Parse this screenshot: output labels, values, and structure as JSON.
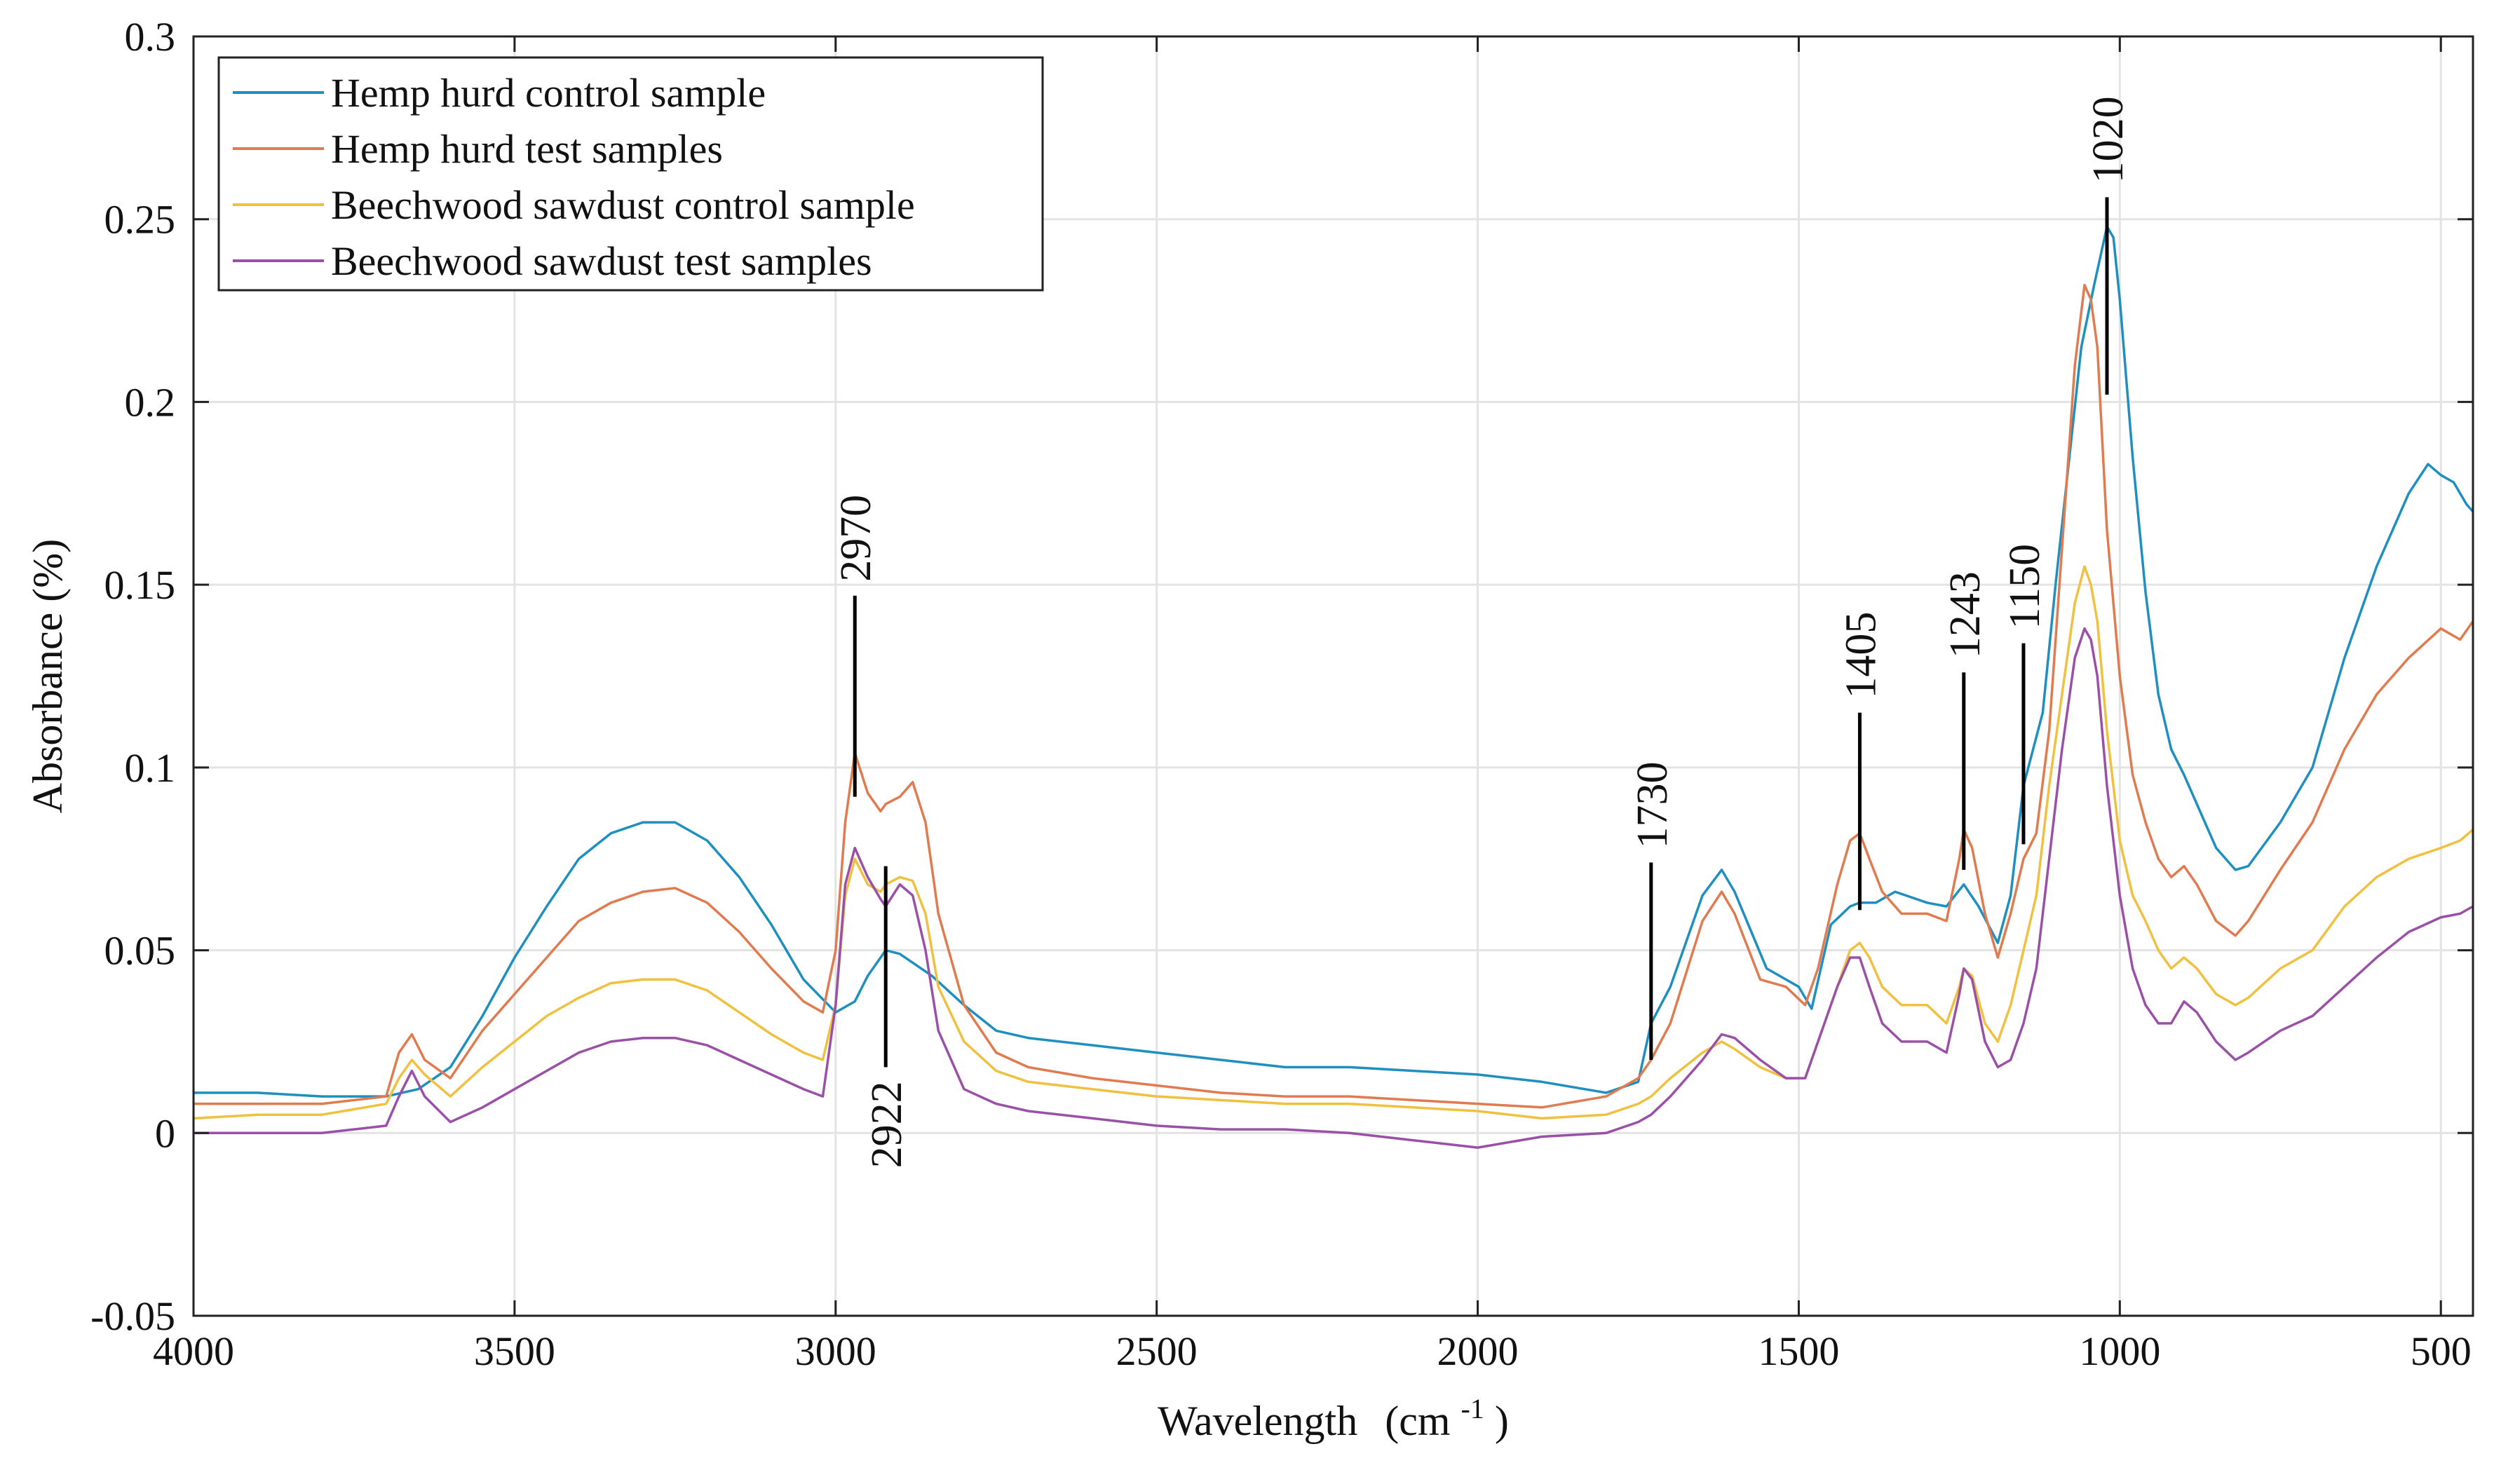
{
  "chart_data": {
    "type": "line",
    "title": "",
    "xlabel": "Wavelength",
    "xlabel_unit": "(cm",
    "xlabel_unit_sup": "-1",
    "xlabel_unit_close": ")",
    "ylabel": "Absorbance (%)",
    "xlim": [
      4000,
      450
    ],
    "ylim": [
      -0.05,
      0.3
    ],
    "x_reversed": true,
    "grid": true,
    "legend_position": "top-left",
    "x_ticks": [
      4000,
      3500,
      3000,
      2500,
      2000,
      1500,
      1000,
      500
    ],
    "x_tick_labels": [
      "4000",
      "3500",
      "3000",
      "2500",
      "2000",
      "1500",
      "1000",
      "500"
    ],
    "y_ticks": [
      -0.05,
      0,
      0.05,
      0.1,
      0.15,
      0.2,
      0.25,
      0.3
    ],
    "y_tick_labels": [
      "-0.05",
      "0",
      "0.05",
      "0.1",
      "0.15",
      "0.2",
      "0.25",
      "0.3"
    ],
    "series": [
      {
        "name": "Hemp hurd control sample",
        "color": "#1f8fc0",
        "x": [
          4000,
          3900,
          3800,
          3700,
          3650,
          3600,
          3550,
          3500,
          3450,
          3400,
          3350,
          3300,
          3250,
          3200,
          3150,
          3100,
          3050,
          3000,
          2970,
          2950,
          2922,
          2900,
          2850,
          2800,
          2750,
          2700,
          2600,
          2500,
          2400,
          2300,
          2200,
          2100,
          2000,
          1900,
          1800,
          1750,
          1730,
          1700,
          1650,
          1620,
          1600,
          1550,
          1500,
          1480,
          1450,
          1420,
          1405,
          1380,
          1350,
          1300,
          1270,
          1243,
          1220,
          1190,
          1170,
          1150,
          1120,
          1100,
          1060,
          1040,
          1030,
          1020,
          1010,
          1000,
          980,
          960,
          940,
          920,
          900,
          880,
          850,
          820,
          800,
          750,
          700,
          650,
          600,
          550,
          520,
          500,
          480,
          460,
          450
        ],
        "y": [
          0.011,
          0.011,
          0.01,
          0.01,
          0.012,
          0.018,
          0.032,
          0.048,
          0.062,
          0.075,
          0.082,
          0.085,
          0.085,
          0.08,
          0.07,
          0.057,
          0.042,
          0.033,
          0.036,
          0.043,
          0.05,
          0.049,
          0.043,
          0.035,
          0.028,
          0.026,
          0.024,
          0.022,
          0.02,
          0.018,
          0.018,
          0.017,
          0.016,
          0.014,
          0.011,
          0.014,
          0.03,
          0.04,
          0.065,
          0.072,
          0.066,
          0.045,
          0.04,
          0.034,
          0.057,
          0.062,
          0.063,
          0.063,
          0.066,
          0.063,
          0.062,
          0.068,
          0.062,
          0.052,
          0.065,
          0.095,
          0.115,
          0.15,
          0.215,
          0.232,
          0.24,
          0.248,
          0.245,
          0.228,
          0.185,
          0.148,
          0.12,
          0.105,
          0.098,
          0.09,
          0.078,
          0.072,
          0.073,
          0.085,
          0.1,
          0.13,
          0.155,
          0.175,
          0.183,
          0.18,
          0.178,
          0.172,
          0.17
        ]
      },
      {
        "name": "Hemp hurd test samples",
        "color": "#e07b50",
        "x": [
          4000,
          3900,
          3800,
          3700,
          3680,
          3660,
          3640,
          3600,
          3550,
          3500,
          3450,
          3400,
          3350,
          3300,
          3250,
          3200,
          3150,
          3100,
          3050,
          3020,
          3000,
          2985,
          2970,
          2950,
          2930,
          2922,
          2900,
          2880,
          2860,
          2840,
          2800,
          2750,
          2700,
          2600,
          2500,
          2400,
          2300,
          2200,
          2100,
          2000,
          1900,
          1800,
          1750,
          1730,
          1700,
          1650,
          1620,
          1600,
          1560,
          1520,
          1490,
          1470,
          1440,
          1420,
          1405,
          1390,
          1370,
          1340,
          1300,
          1270,
          1250,
          1243,
          1230,
          1210,
          1190,
          1170,
          1150,
          1130,
          1110,
          1090,
          1070,
          1055,
          1045,
          1035,
          1020,
          1000,
          980,
          960,
          940,
          920,
          900,
          880,
          850,
          820,
          800,
          750,
          700,
          650,
          600,
          550,
          500,
          470,
          450
        ],
        "y": [
          0.008,
          0.008,
          0.008,
          0.01,
          0.022,
          0.027,
          0.02,
          0.015,
          0.028,
          0.038,
          0.048,
          0.058,
          0.063,
          0.066,
          0.067,
          0.063,
          0.055,
          0.045,
          0.036,
          0.033,
          0.05,
          0.085,
          0.104,
          0.093,
          0.088,
          0.09,
          0.092,
          0.096,
          0.085,
          0.06,
          0.035,
          0.022,
          0.018,
          0.015,
          0.013,
          0.011,
          0.01,
          0.01,
          0.009,
          0.008,
          0.007,
          0.01,
          0.015,
          0.02,
          0.03,
          0.058,
          0.066,
          0.06,
          0.042,
          0.04,
          0.035,
          0.045,
          0.068,
          0.08,
          0.082,
          0.075,
          0.066,
          0.06,
          0.06,
          0.058,
          0.075,
          0.083,
          0.078,
          0.06,
          0.048,
          0.06,
          0.075,
          0.082,
          0.11,
          0.16,
          0.21,
          0.232,
          0.228,
          0.215,
          0.165,
          0.125,
          0.098,
          0.085,
          0.075,
          0.07,
          0.073,
          0.068,
          0.058,
          0.054,
          0.058,
          0.072,
          0.085,
          0.105,
          0.12,
          0.13,
          0.138,
          0.135,
          0.14
        ]
      },
      {
        "name": "Beechwood sawdust control sample",
        "color": "#f0c040",
        "x": [
          4000,
          3900,
          3800,
          3700,
          3680,
          3660,
          3640,
          3600,
          3550,
          3500,
          3450,
          3400,
          3350,
          3300,
          3250,
          3200,
          3150,
          3100,
          3050,
          3020,
          3000,
          2985,
          2970,
          2950,
          2930,
          2922,
          2900,
          2880,
          2860,
          2840,
          2800,
          2750,
          2700,
          2600,
          2500,
          2400,
          2300,
          2200,
          2100,
          2000,
          1900,
          1800,
          1750,
          1730,
          1700,
          1650,
          1620,
          1600,
          1560,
          1520,
          1490,
          1470,
          1440,
          1420,
          1405,
          1390,
          1370,
          1340,
          1300,
          1270,
          1250,
          1243,
          1230,
          1210,
          1190,
          1170,
          1150,
          1130,
          1110,
          1090,
          1070,
          1055,
          1045,
          1035,
          1020,
          1000,
          980,
          960,
          940,
          920,
          900,
          880,
          850,
          820,
          800,
          750,
          700,
          650,
          600,
          550,
          500,
          470,
          450
        ],
        "y": [
          0.004,
          0.005,
          0.005,
          0.008,
          0.015,
          0.02,
          0.016,
          0.01,
          0.018,
          0.025,
          0.032,
          0.037,
          0.041,
          0.042,
          0.042,
          0.039,
          0.033,
          0.027,
          0.022,
          0.02,
          0.035,
          0.065,
          0.075,
          0.068,
          0.066,
          0.068,
          0.07,
          0.069,
          0.06,
          0.04,
          0.025,
          0.017,
          0.014,
          0.012,
          0.01,
          0.009,
          0.008,
          0.008,
          0.007,
          0.006,
          0.004,
          0.005,
          0.008,
          0.01,
          0.015,
          0.022,
          0.025,
          0.023,
          0.018,
          0.015,
          0.015,
          0.025,
          0.04,
          0.05,
          0.052,
          0.048,
          0.04,
          0.035,
          0.035,
          0.03,
          0.04,
          0.045,
          0.043,
          0.03,
          0.025,
          0.035,
          0.05,
          0.065,
          0.095,
          0.12,
          0.145,
          0.155,
          0.15,
          0.14,
          0.11,
          0.08,
          0.065,
          0.058,
          0.05,
          0.045,
          0.048,
          0.045,
          0.038,
          0.035,
          0.037,
          0.045,
          0.05,
          0.062,
          0.07,
          0.075,
          0.078,
          0.08,
          0.083
        ]
      },
      {
        "name": "Beechwood sawdust test samples",
        "color": "#9b50a8",
        "x": [
          4000,
          3900,
          3800,
          3700,
          3680,
          3660,
          3640,
          3600,
          3550,
          3500,
          3450,
          3400,
          3350,
          3300,
          3250,
          3200,
          3150,
          3100,
          3050,
          3020,
          3000,
          2985,
          2970,
          2950,
          2930,
          2922,
          2900,
          2880,
          2860,
          2840,
          2800,
          2750,
          2700,
          2600,
          2500,
          2400,
          2300,
          2200,
          2100,
          2000,
          1900,
          1800,
          1750,
          1730,
          1700,
          1650,
          1620,
          1600,
          1560,
          1520,
          1490,
          1470,
          1440,
          1420,
          1405,
          1390,
          1370,
          1340,
          1300,
          1270,
          1250,
          1243,
          1230,
          1210,
          1190,
          1170,
          1150,
          1130,
          1110,
          1090,
          1070,
          1055,
          1045,
          1035,
          1020,
          1000,
          980,
          960,
          940,
          920,
          900,
          880,
          850,
          820,
          800,
          750,
          700,
          650,
          600,
          550,
          500,
          470,
          450
        ],
        "y": [
          0.0,
          0.0,
          0.0,
          0.002,
          0.01,
          0.017,
          0.01,
          0.003,
          0.007,
          0.012,
          0.017,
          0.022,
          0.025,
          0.026,
          0.026,
          0.024,
          0.02,
          0.016,
          0.012,
          0.01,
          0.035,
          0.068,
          0.078,
          0.07,
          0.064,
          0.062,
          0.068,
          0.065,
          0.05,
          0.028,
          0.012,
          0.008,
          0.006,
          0.004,
          0.002,
          0.001,
          0.001,
          0.0,
          -0.002,
          -0.004,
          -0.001,
          0.0,
          0.003,
          0.005,
          0.01,
          0.02,
          0.027,
          0.026,
          0.02,
          0.015,
          0.015,
          0.025,
          0.04,
          0.048,
          0.048,
          0.04,
          0.03,
          0.025,
          0.025,
          0.022,
          0.038,
          0.045,
          0.042,
          0.025,
          0.018,
          0.02,
          0.03,
          0.045,
          0.075,
          0.105,
          0.13,
          0.138,
          0.135,
          0.125,
          0.095,
          0.065,
          0.045,
          0.035,
          0.03,
          0.03,
          0.036,
          0.033,
          0.025,
          0.02,
          0.022,
          0.028,
          0.032,
          0.04,
          0.048,
          0.055,
          0.059,
          0.06,
          0.062
        ]
      }
    ],
    "annotations": [
      {
        "label": "2970",
        "x": 2970,
        "line_from": 0.092,
        "line_to": 0.147,
        "text_side": "above"
      },
      {
        "label": "2922",
        "x": 2922,
        "line_from": 0.018,
        "line_to": 0.073,
        "text_side": "below"
      },
      {
        "label": "1730",
        "x": 1730,
        "line_from": 0.02,
        "line_to": 0.074,
        "text_side": "above"
      },
      {
        "label": "1405",
        "x": 1405,
        "line_from": 0.061,
        "line_to": 0.115,
        "text_side": "above"
      },
      {
        "label": "1243",
        "x": 1243,
        "line_from": 0.072,
        "line_to": 0.126,
        "text_side": "above"
      },
      {
        "label": "1150",
        "x": 1150,
        "line_from": 0.079,
        "line_to": 0.134,
        "text_side": "above"
      },
      {
        "label": "1020",
        "x": 1020,
        "line_from": 0.202,
        "line_to": 0.256,
        "text_side": "above"
      }
    ]
  }
}
